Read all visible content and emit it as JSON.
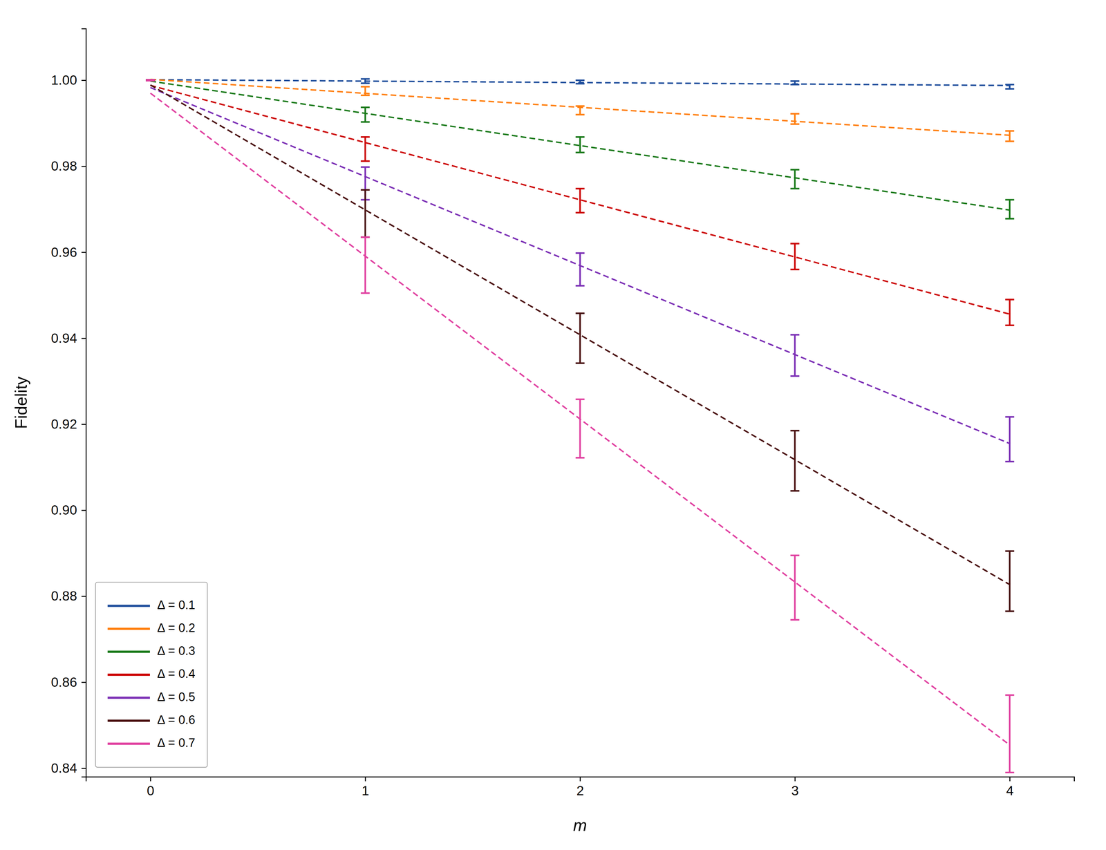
{
  "chart_data": {
    "type": "errorbar",
    "xlabel": "m",
    "ylabel": "Fidelity",
    "x": [
      0,
      1,
      2,
      3,
      4
    ],
    "xlim": [
      -0.3,
      4.3
    ],
    "ylim": [
      0.838,
      1.012
    ],
    "xticks": [
      0,
      1,
      2,
      3,
      4
    ],
    "yticks": [
      0.84,
      0.86,
      0.88,
      {
        "value": 0.9,
        "label": "0.90"
      },
      0.92,
      0.94,
      0.96,
      0.98,
      {
        "value": 1.0,
        "label": "1.00"
      }
    ],
    "grid": false,
    "legend": "lower left",
    "line_style": "dashed",
    "series": [
      {
        "name": "Δ = 0.1",
        "color": "#1f4e9c",
        "values": [
          1.0,
          0.9998,
          0.9996,
          0.9994,
          0.9985
        ],
        "errors": [
          0.0001,
          0.0005,
          0.0004,
          0.0004,
          0.0005
        ],
        "fit": [
          1.00014,
          0.9998,
          0.99946,
          0.99912,
          0.99878
        ]
      },
      {
        "name": "Δ = 0.2",
        "color": "#ff7f0e",
        "values": [
          1.0,
          0.9975,
          0.993,
          0.991,
          0.987
        ],
        "errors": [
          0.0001,
          0.001,
          0.001,
          0.0012,
          0.0012
        ],
        "fit": [
          1.0002,
          0.99695,
          0.9937,
          0.99045,
          0.9872
        ]
      },
      {
        "name": "Δ = 0.3",
        "color": "#1a7a1a",
        "values": [
          1.0,
          0.992,
          0.985,
          0.977,
          0.97
        ],
        "errors": [
          0.0001,
          0.0017,
          0.0018,
          0.0022,
          0.0022
        ],
        "fit": [
          0.9998,
          0.9923,
          0.9848,
          0.9773,
          0.9698
        ]
      },
      {
        "name": "Δ = 0.4",
        "color": "#cc0000",
        "values": [
          1.0,
          0.984,
          0.972,
          0.959,
          0.946
        ],
        "errors": [
          0.0001,
          0.0028,
          0.0028,
          0.003,
          0.003
        ],
        "fit": [
          0.9988,
          0.9855,
          0.9722,
          0.9589,
          0.9456
        ]
      },
      {
        "name": "Δ = 0.5",
        "color": "#7b2fb5",
        "values": [
          1.0,
          0.976,
          0.956,
          0.936,
          0.9165
        ],
        "errors": [
          0.0001,
          0.0038,
          0.0038,
          0.0048,
          0.0052
        ],
        "fit": [
          0.9983,
          0.9776,
          0.9569,
          0.9362,
          0.9155
        ]
      },
      {
        "name": "Δ = 0.6",
        "color": "#4a1010",
        "values": [
          1.0,
          0.969,
          0.94,
          0.9115,
          0.8835
        ],
        "errors": [
          0.0001,
          0.0055,
          0.0058,
          0.007,
          0.007
        ],
        "fit": [
          0.9989,
          0.96985,
          0.9408,
          0.91175,
          0.8827
        ]
      },
      {
        "name": "Δ = 0.7",
        "color": "#e040a0",
        "values": [
          1.0,
          0.957,
          0.919,
          0.882,
          0.848
        ],
        "errors": [
          0.0001,
          0.0065,
          0.0068,
          0.0075,
          0.009
        ],
        "fit": [
          0.997,
          0.9591,
          0.9212,
          0.8833,
          0.8454
        ]
      }
    ]
  }
}
